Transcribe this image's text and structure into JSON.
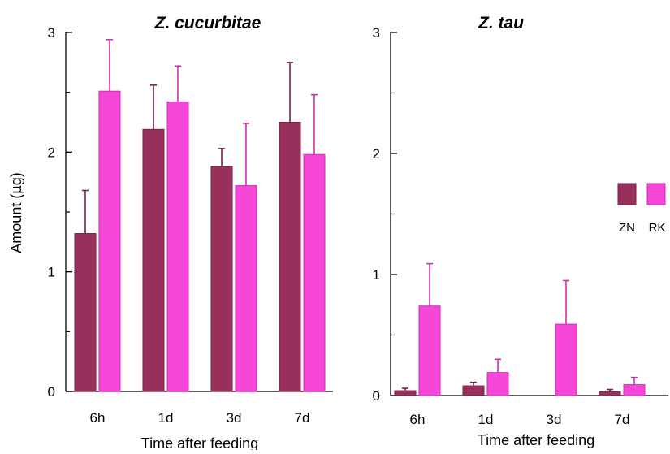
{
  "chart_data": [
    {
      "type": "bar",
      "title": "Z. cucurbitae",
      "xlabel": "Time after feeding",
      "ylabel": "Amount (µg)",
      "ylim": [
        0,
        3
      ],
      "yticks": [
        "0",
        "1",
        "2",
        "3"
      ],
      "categories": [
        "6h",
        "1d",
        "3d",
        "7d"
      ],
      "series": [
        {
          "name": "ZN",
          "values": [
            1.32,
            2.19,
            1.88,
            2.25
          ],
          "errors": [
            0.36,
            0.37,
            0.15,
            0.5
          ]
        },
        {
          "name": "RK",
          "values": [
            2.51,
            2.42,
            1.72,
            1.98
          ],
          "errors": [
            0.43,
            0.3,
            0.52,
            0.5
          ]
        }
      ],
      "grid": false
    },
    {
      "type": "bar",
      "title": "Z. tau",
      "xlabel": "Time after feeding",
      "ylabel": "",
      "ylim": [
        0,
        3
      ],
      "yticks": [
        "0",
        "1",
        "2",
        "3"
      ],
      "categories": [
        "6h",
        "1d",
        "3d",
        "7d"
      ],
      "series": [
        {
          "name": "ZN",
          "values": [
            0.04,
            0.08,
            0.0,
            0.03
          ],
          "errors": [
            0.02,
            0.03,
            0.0,
            0.02
          ]
        },
        {
          "name": "RK",
          "values": [
            0.74,
            0.19,
            0.59,
            0.09
          ],
          "errors": [
            0.35,
            0.11,
            0.36,
            0.06
          ]
        }
      ],
      "grid": false
    }
  ],
  "legend": {
    "placement": "right",
    "items": [
      {
        "label": "ZN",
        "color": "#98305C"
      },
      {
        "label": "RK",
        "color": "#F548D8"
      }
    ]
  },
  "colors": {
    "ZN": "#98305C",
    "RK": "#F548D8",
    "ZN_stroke": "#7a2248",
    "RK_stroke": "#d02db5"
  }
}
